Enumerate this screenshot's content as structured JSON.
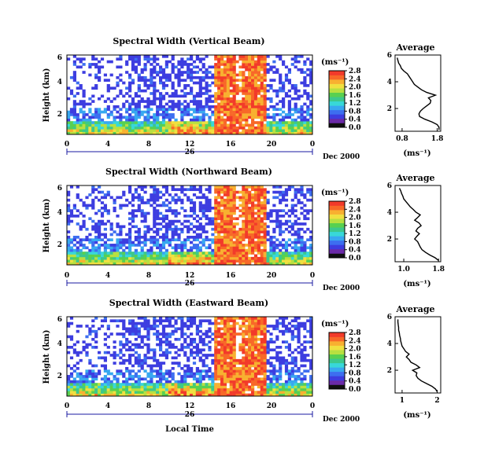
{
  "colors": {
    "scale": [
      "#101010",
      "#6a2aa8",
      "#3d3de0",
      "#3d6ef0",
      "#38a8f0",
      "#38d8d8",
      "#3cc88c",
      "#58d050",
      "#b8e040",
      "#f0e040",
      "#f8b030",
      "#f86828",
      "#f23a2a"
    ],
    "background": "#ffffff"
  },
  "chart_data": [
    {
      "type": "heatmap",
      "title": "Spectral Width (Vertical Beam)",
      "ylabel": "Height (km)",
      "xticks": [
        "0",
        "4",
        "8",
        "12",
        "16",
        "20",
        "0"
      ],
      "xlim": [
        0,
        24
      ],
      "yticks": [
        "2",
        "4",
        "6"
      ],
      "ylim": [
        0.3,
        6
      ],
      "date_label": "26",
      "month_label": "Dec 2000",
      "colorbar": {
        "unit": "(ms⁻¹)",
        "ticks": [
          "0.0",
          "0.4",
          "0.8",
          "1.2",
          "1.6",
          "2.0",
          "2.4",
          "2.8"
        ],
        "range": [
          0,
          2.8
        ]
      },
      "average": {
        "title": "Average",
        "xlabel": "(ms⁻¹)",
        "xticks": [
          "0.8",
          "1.8"
        ],
        "xlim": [
          0.6,
          1.9
        ],
        "yticks": [
          "2",
          "4",
          "6"
        ],
        "ylim": [
          0.3,
          6
        ],
        "height": [
          0.4,
          0.6,
          0.8,
          1.0,
          1.2,
          1.4,
          1.6,
          1.8,
          2.0,
          2.2,
          2.4,
          2.6,
          2.8,
          3.0,
          3.2,
          3.4,
          3.6,
          3.8,
          4.0,
          4.2,
          4.4,
          4.6,
          4.8,
          5.0,
          5.2,
          5.4,
          5.6,
          5.8
        ],
        "values": [
          1.85,
          1.85,
          1.8,
          1.65,
          1.45,
          1.3,
          1.28,
          1.32,
          1.4,
          1.5,
          1.6,
          1.62,
          1.55,
          1.75,
          1.5,
          1.35,
          1.25,
          1.15,
          1.1,
          1.05,
          1.0,
          0.95,
          0.85,
          0.78,
          0.75,
          0.7,
          0.68,
          0.66
        ]
      }
    },
    {
      "type": "heatmap",
      "title": "Spectral Width (Northward Beam)",
      "ylabel": "Height (km)",
      "xticks": [
        "0",
        "4",
        "8",
        "12",
        "16",
        "20",
        "0"
      ],
      "xlim": [
        0,
        24
      ],
      "yticks": [
        "2",
        "4",
        "6"
      ],
      "ylim": [
        0.3,
        6
      ],
      "date_label": "26",
      "month_label": "Dec 2000",
      "colorbar": {
        "unit": "(ms⁻¹)",
        "ticks": [
          "0.0",
          "0.4",
          "0.8",
          "1.2",
          "1.6",
          "2.0",
          "2.4",
          "2.8"
        ],
        "range": [
          0,
          2.8
        ]
      },
      "average": {
        "title": "Average",
        "xlabel": "(ms⁻¹)",
        "xticks": [
          "1.0",
          "1.8"
        ],
        "xlim": [
          0.8,
          1.85
        ],
        "yticks": [
          "2",
          "4",
          "6"
        ],
        "ylim": [
          0.3,
          6
        ],
        "height": [
          0.4,
          0.6,
          0.8,
          1.0,
          1.2,
          1.4,
          1.6,
          1.8,
          2.0,
          2.2,
          2.4,
          2.6,
          2.8,
          3.0,
          3.2,
          3.4,
          3.6,
          3.8,
          4.0,
          4.2,
          4.4,
          4.6,
          4.8,
          5.0,
          5.2,
          5.4,
          5.6,
          5.8
        ],
        "values": [
          1.8,
          1.72,
          1.6,
          1.5,
          1.42,
          1.38,
          1.35,
          1.32,
          1.25,
          1.3,
          1.36,
          1.28,
          1.32,
          1.4,
          1.35,
          1.25,
          1.32,
          1.38,
          1.28,
          1.22,
          1.15,
          1.1,
          1.05,
          1.0,
          0.98,
          0.95,
          0.93,
          0.9
        ]
      }
    },
    {
      "type": "heatmap",
      "title": "Spectral Width (Eastward Beam)",
      "ylabel": "Height (km)",
      "xlabel": "Local Time",
      "xticks": [
        "0",
        "4",
        "8",
        "12",
        "16",
        "20",
        "0"
      ],
      "xlim": [
        0,
        24
      ],
      "yticks": [
        "2",
        "4",
        "6"
      ],
      "ylim": [
        0.3,
        6
      ],
      "date_label": "26",
      "month_label": "Dec 2000",
      "colorbar": {
        "unit": "(ms⁻¹)",
        "ticks": [
          "0.0",
          "0.4",
          "0.8",
          "1.2",
          "1.6",
          "2.0",
          "2.4",
          "2.8"
        ],
        "range": [
          0,
          2.8
        ]
      },
      "average": {
        "title": "Average",
        "xlabel": "(ms⁻¹)",
        "xticks": [
          "1",
          "2"
        ],
        "xlim": [
          0.8,
          2.1
        ],
        "yticks": [
          "2",
          "4",
          "6"
        ],
        "ylim": [
          0.3,
          6
        ],
        "height": [
          0.4,
          0.6,
          0.8,
          1.0,
          1.2,
          1.4,
          1.6,
          1.8,
          2.0,
          2.2,
          2.4,
          2.6,
          2.8,
          3.0,
          3.2,
          3.4,
          3.6,
          3.8,
          4.0,
          4.2,
          4.4,
          4.6,
          4.8,
          5.0,
          5.2,
          5.4,
          5.6,
          5.8
        ],
        "values": [
          2.0,
          1.95,
          1.85,
          1.7,
          1.55,
          1.45,
          1.4,
          1.42,
          1.3,
          1.5,
          1.4,
          1.25,
          1.2,
          1.12,
          1.2,
          1.1,
          1.05,
          1.0,
          0.98,
          0.96,
          0.95,
          0.93,
          0.92,
          0.9,
          0.9,
          0.89,
          0.88,
          0.88
        ]
      }
    }
  ]
}
